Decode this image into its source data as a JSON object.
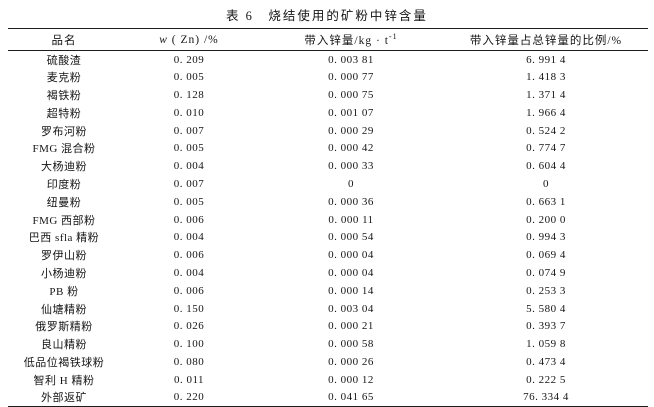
{
  "title": "表 6　烧结使用的矿粉中锌含量",
  "colors": {
    "background": "#ffffff",
    "text": "#151515",
    "rule_line": "#1c1c1c"
  },
  "table": {
    "headers": {
      "name": "品名",
      "w_italic": "w",
      "w_rest": " ( Zn) /%",
      "amount_base": "带入锌量/kg · t",
      "amount_sup": "-1",
      "ratio": "带入锌量占总锌量的比例/%"
    },
    "rows": [
      {
        "name": "硫酸渣",
        "w_zn": "0. 209",
        "zn_amount": "0. 003 81",
        "zn_ratio": "6. 991 4"
      },
      {
        "name": "麦克粉",
        "w_zn": "0. 005",
        "zn_amount": "0. 000 77",
        "zn_ratio": "1. 418 3"
      },
      {
        "name": "褐铁粉",
        "w_zn": "0. 128",
        "zn_amount": "0. 000 75",
        "zn_ratio": "1. 371 4"
      },
      {
        "name": "超特粉",
        "w_zn": "0. 010",
        "zn_amount": "0. 001 07",
        "zn_ratio": "1. 966 4"
      },
      {
        "name": "罗布河粉",
        "w_zn": "0. 007",
        "zn_amount": "0. 000 29",
        "zn_ratio": "0. 524 2"
      },
      {
        "name": "FMG 混合粉",
        "w_zn": "0. 005",
        "zn_amount": "0. 000 42",
        "zn_ratio": "0. 774 7"
      },
      {
        "name": "大杨迪粉",
        "w_zn": "0. 004",
        "zn_amount": "0. 000 33",
        "zn_ratio": "0. 604 4"
      },
      {
        "name": "印度粉",
        "w_zn": "0. 007",
        "zn_amount": "0",
        "zn_ratio": "0"
      },
      {
        "name": "纽曼粉",
        "w_zn": "0. 005",
        "zn_amount": "0. 000 36",
        "zn_ratio": "0. 663 1"
      },
      {
        "name": "FMG 西部粉",
        "w_zn": "0. 006",
        "zn_amount": "0. 000 11",
        "zn_ratio": "0. 200 0"
      },
      {
        "name": "巴西 sfla 精粉",
        "w_zn": "0. 004",
        "zn_amount": "0. 000 54",
        "zn_ratio": "0. 994 3"
      },
      {
        "name": "罗伊山粉",
        "w_zn": "0. 006",
        "zn_amount": "0. 000 04",
        "zn_ratio": "0. 069 4"
      },
      {
        "name": "小杨迪粉",
        "w_zn": "0. 004",
        "zn_amount": "0. 000 04",
        "zn_ratio": "0. 074 9"
      },
      {
        "name": "PB 粉",
        "w_zn": "0. 006",
        "zn_amount": "0. 000 14",
        "zn_ratio": "0. 253 3"
      },
      {
        "name": "仙塘精粉",
        "w_zn": "0. 150",
        "zn_amount": "0. 003 04",
        "zn_ratio": "5. 580 4"
      },
      {
        "name": "俄罗斯精粉",
        "w_zn": "0. 026",
        "zn_amount": "0. 000 21",
        "zn_ratio": "0. 393 7"
      },
      {
        "name": "良山精粉",
        "w_zn": "0. 100",
        "zn_amount": "0. 000 58",
        "zn_ratio": "1. 059 8"
      },
      {
        "name": "低品位褐铁球粉",
        "w_zn": "0. 080",
        "zn_amount": "0. 000 26",
        "zn_ratio": "0. 473 4"
      },
      {
        "name": "智利 H 精粉",
        "w_zn": "0. 011",
        "zn_amount": "0. 000 12",
        "zn_ratio": "0. 222 5"
      },
      {
        "name": "外部返矿",
        "w_zn": "0. 220",
        "zn_amount": "0. 041 65",
        "zn_ratio": "76. 334 4"
      }
    ]
  }
}
